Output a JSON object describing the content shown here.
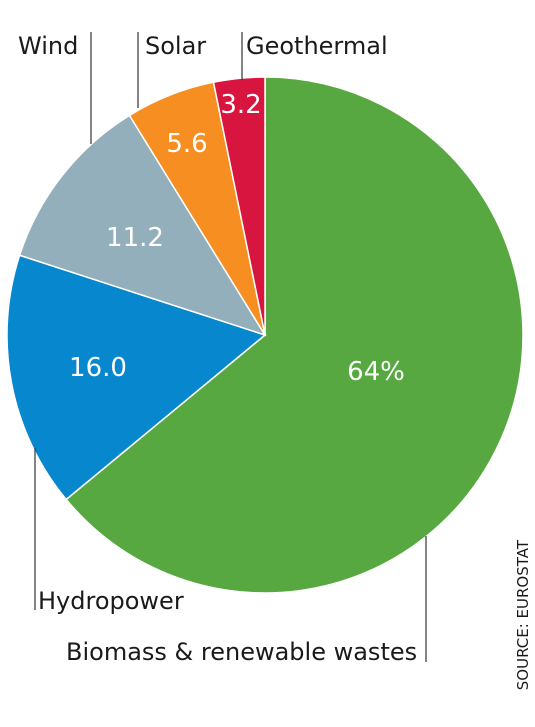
{
  "chart_data": {
    "type": "pie",
    "slices": [
      {
        "label": "Biomass & renewable wastes",
        "value": 64.0,
        "display": "64%",
        "color": "#57a840"
      },
      {
        "label": "Hydropower",
        "value": 16.0,
        "display": "16.0",
        "color": "#0787ce"
      },
      {
        "label": "Wind",
        "value": 11.2,
        "display": "11.2",
        "color": "#93afbc"
      },
      {
        "label": "Solar",
        "value": 5.6,
        "display": "5.6",
        "color": "#f68e22"
      },
      {
        "label": "Geothermal",
        "value": 3.2,
        "display": "3.2",
        "color": "#d8153f"
      }
    ],
    "start_angle_deg": 0,
    "direction": "clockwise",
    "source": "SOURCE: EUROSTAT"
  }
}
